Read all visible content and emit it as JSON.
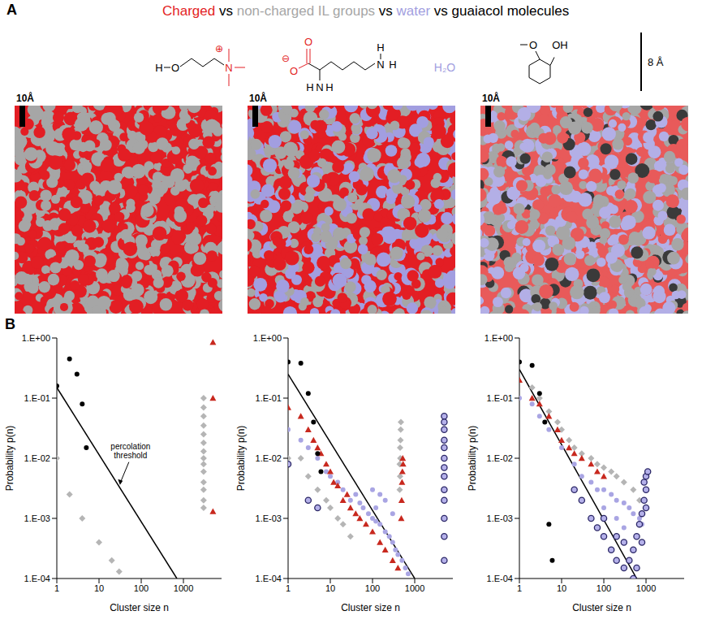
{
  "panel_a": {
    "letter": "A",
    "title_parts": [
      {
        "text": "Charged",
        "color": "#e31e24"
      },
      {
        "text": " vs ",
        "color": "#000000"
      },
      {
        "text": "non-charged IL groups",
        "color": "#a6a6a6"
      },
      {
        "text": " vs ",
        "color": "#000000"
      },
      {
        "text": "water",
        "color": "#a29ee0"
      },
      {
        "text": " vs guaiacol molecules",
        "color": "#000000"
      }
    ],
    "cation_atoms": [
      "H",
      "O",
      "N",
      "⊕"
    ],
    "anion_atoms": [
      "O",
      "⊖",
      "O",
      "H",
      "N",
      "H",
      "N",
      "H",
      "H"
    ],
    "water": "H₂O",
    "guaiacol_atoms": [
      "O",
      "OH"
    ],
    "size_scale": "8 Å",
    "snapshots": [
      {
        "scale": "10Å",
        "colors": [
          "#e31e24",
          "#a6a6a6"
        ]
      },
      {
        "scale": "10Å",
        "colors": [
          "#e31e24",
          "#a6a6a6",
          "#a29ee0"
        ]
      },
      {
        "scale": "10Å",
        "colors": [
          "#e85a5a",
          "#a6a6a6",
          "#b3afe6",
          "#3a3a3a"
        ]
      }
    ]
  },
  "panel_b": {
    "letter": "B"
  },
  "chart_data": [
    {
      "type": "scatter",
      "log": true,
      "xlim": [
        1,
        8000
      ],
      "ylim": [
        0.0001,
        1
      ],
      "xticks": [
        1,
        10,
        100,
        1000
      ],
      "yticks": [
        {
          "value": 1,
          "label": "1.E+00"
        },
        {
          "value": 0.1,
          "label": "1.E-01"
        },
        {
          "value": 0.01,
          "label": "1.E-02"
        },
        {
          "value": 0.001,
          "label": "1.E-03"
        },
        {
          "value": 0.0001,
          "label": "1.E-04"
        }
      ],
      "x_label": "Cluster size n",
      "y_label": "Probability p(n)",
      "annotation": {
        "text": "percolation threshold",
        "x": 30,
        "y": 0.0034
      },
      "series": [
        {
          "type": "line",
          "line_style": "solid",
          "color": "#000000",
          "x": [
            1,
            700
          ],
          "y": [
            0.15,
            0.0001
          ]
        },
        {
          "marker": "diamond",
          "color": "#b5b5b5",
          "x": [
            1,
            2,
            4,
            10,
            20,
            30,
            3000,
            3000,
            3000,
            3000,
            3000,
            3000,
            3000,
            3000,
            3000,
            3000,
            3000,
            3000,
            3000,
            3000
          ],
          "y": [
            0.01,
            0.0025,
            0.001,
            0.0004,
            0.0002,
            0.00013,
            0.1,
            0.07,
            0.05,
            0.035,
            0.025,
            0.018,
            0.013,
            0.01,
            0.008,
            0.006,
            0.004,
            0.003,
            0.002,
            0.0015
          ]
        },
        {
          "marker": "triangle",
          "color": "#c8281e",
          "x": [
            5000,
            5000,
            5000
          ],
          "y": [
            0.85,
            0.1,
            0.0013
          ]
        },
        {
          "marker": "circle",
          "color": "#000000",
          "x": [
            1,
            2,
            3,
            4,
            5
          ],
          "y": [
            0.16,
            0.45,
            0.25,
            0.08,
            0.015
          ]
        }
      ]
    },
    {
      "type": "scatter",
      "log": true,
      "xlim": [
        1,
        8000
      ],
      "ylim": [
        0.0001,
        1
      ],
      "xticks": [
        1,
        10,
        100,
        1000
      ],
      "yticks": [
        {
          "value": 1,
          "label": "1.E+00"
        },
        {
          "value": 0.1,
          "label": "1.E-01"
        },
        {
          "value": 0.01,
          "label": "1.E-02"
        },
        {
          "value": 0.001,
          "label": "1.E-03"
        },
        {
          "value": 0.0001,
          "label": "1.E-04"
        }
      ],
      "x_label": "Cluster size n",
      "y_label": "Probability p(n)",
      "series": [
        {
          "type": "line",
          "line_style": "solid",
          "color": "#000000",
          "x": [
            1,
            1000
          ],
          "y": [
            0.25,
            0.0001
          ]
        },
        {
          "marker": "circle",
          "color": "#a9a5e3",
          "x": [
            1,
            2,
            3,
            5,
            8,
            10,
            15,
            20,
            30,
            40,
            50,
            60,
            80,
            100,
            100,
            120,
            120,
            150,
            150,
            200,
            200,
            250,
            300,
            300,
            350,
            400,
            500,
            600,
            700
          ],
          "y": [
            0.03,
            0.02,
            0.015,
            0.01,
            0.006,
            0.005,
            0.004,
            0.003,
            0.002,
            0.0025,
            0.0018,
            0.0015,
            0.0012,
            0.001,
            0.003,
            0.0009,
            0.0015,
            0.0008,
            0.0025,
            0.0006,
            0.002,
            0.0005,
            0.0004,
            0.0012,
            0.0003,
            0.00025,
            0.0002,
            0.00015,
            0.00012
          ]
        },
        {
          "marker": "diamond",
          "color": "#b5b5b5",
          "x": [
            1,
            2,
            3,
            5,
            8,
            10,
            15,
            20,
            30,
            440,
            440,
            450,
            450,
            455,
            460,
            465,
            470
          ],
          "y": [
            0.01,
            0.01,
            0.005,
            0.003,
            0.002,
            0.0015,
            0.001,
            0.0008,
            0.0005,
            0.003,
            0.008,
            0.005,
            0.015,
            0.01,
            0.02,
            0.03,
            0.04
          ]
        },
        {
          "marker": "triangle",
          "color": "#c8281e",
          "x": [
            1,
            2,
            3,
            4,
            5,
            6,
            8,
            10,
            12,
            15,
            20,
            25,
            30,
            40,
            50,
            70,
            100,
            150,
            200,
            300,
            400,
            480,
            490,
            500,
            510,
            520,
            530
          ],
          "y": [
            0.07,
            0.05,
            0.03,
            0.02,
            0.015,
            0.012,
            0.008,
            0.006,
            0.004,
            0.0035,
            0.002,
            0.0025,
            0.0015,
            0.0012,
            0.001,
            0.0008,
            0.0006,
            0.0004,
            0.0003,
            0.0002,
            0.00015,
            0.001,
            0.002,
            0.004,
            0.006,
            0.01,
            0.008
          ]
        },
        {
          "marker": "ring",
          "color": "#2b2766",
          "x": [
            1,
            3,
            5,
            5000,
            5000,
            5000,
            5000,
            5000,
            5000,
            5000,
            5000,
            5000,
            5000,
            5000,
            5000,
            5000
          ],
          "y": [
            0.008,
            0.002,
            0.0015,
            0.05,
            0.04,
            0.03,
            0.02,
            0.015,
            0.01,
            0.007,
            0.005,
            0.003,
            0.002,
            0.001,
            0.0005,
            0.0002
          ]
        },
        {
          "marker": "circle",
          "color": "#000000",
          "x": [
            1,
            2,
            3,
            4,
            5,
            6
          ],
          "y": [
            0.4,
            0.38,
            0.12,
            0.04,
            0.012,
            0.006
          ]
        }
      ]
    },
    {
      "type": "scatter",
      "log": true,
      "xlim": [
        1,
        8000
      ],
      "ylim": [
        0.0001,
        1
      ],
      "xticks": [
        1,
        10,
        100,
        1000
      ],
      "yticks": [
        {
          "value": 1,
          "label": "1.E+00"
        },
        {
          "value": 0.1,
          "label": "1.E-01"
        },
        {
          "value": 0.01,
          "label": "1.E-02"
        },
        {
          "value": 0.001,
          "label": "1.E-03"
        },
        {
          "value": 0.0001,
          "label": "1.E-04"
        }
      ],
      "x_label": "Cluster size n",
      "y_label": "Probability p(n)",
      "series": [
        {
          "type": "line",
          "line_style": "solid",
          "color": "#000000",
          "x": [
            1,
            600
          ],
          "y": [
            0.3,
            0.0001
          ]
        },
        {
          "marker": "diamond",
          "color": "#b5b5b5",
          "x": [
            2,
            3,
            5,
            8,
            10,
            15,
            20,
            30,
            50,
            70,
            100,
            150,
            200,
            300,
            500,
            700
          ],
          "y": [
            0.15,
            0.1,
            0.06,
            0.04,
            0.03,
            0.02,
            0.015,
            0.012,
            0.01,
            0.008,
            0.007,
            0.006,
            0.005,
            0.004,
            0.003,
            0.002
          ]
        },
        {
          "marker": "triangle",
          "color": "#c8281e",
          "x": [
            1,
            2,
            3,
            5,
            8,
            10,
            15,
            20,
            30,
            50,
            70,
            100
          ],
          "y": [
            0.2,
            0.1,
            0.08,
            0.05,
            0.03,
            0.02,
            0.015,
            0.012,
            0.01,
            0.008,
            0.006,
            0.005
          ]
        },
        {
          "marker": "circle",
          "color": "#a9a5e3",
          "x": [
            1,
            2,
            3,
            5,
            10,
            20,
            30,
            50,
            70,
            100,
            100,
            150,
            200,
            200,
            300,
            300,
            400,
            500,
            700,
            800
          ],
          "y": [
            0.1,
            0.08,
            0.05,
            0.03,
            0.015,
            0.008,
            0.005,
            0.004,
            0.003,
            0.003,
            0.0015,
            0.0025,
            0.002,
            0.001,
            0.0018,
            0.0007,
            0.0015,
            0.0012,
            0.001,
            0.0008
          ]
        },
        {
          "marker": "ring",
          "color": "#2b2766",
          "x": [
            20,
            30,
            50,
            70,
            100,
            100,
            150,
            200,
            200,
            300,
            300,
            400,
            500,
            500,
            600,
            600,
            700,
            800,
            800,
            900,
            900,
            1000,
            1000,
            1000,
            1100
          ],
          "y": [
            0.003,
            0.002,
            0.001,
            0.0007,
            0.0005,
            0.001,
            0.0003,
            0.0002,
            0.0005,
            0.00015,
            0.0004,
            0.0002,
            0.0003,
            0.0001,
            0.0005,
            0.00015,
            0.0008,
            0.0012,
            0.0004,
            0.002,
            0.004,
            0.003,
            0.005,
            0.0015,
            0.006
          ]
        },
        {
          "marker": "circle",
          "color": "#000000",
          "x": [
            1,
            2,
            3,
            4,
            5,
            6
          ],
          "y": [
            0.4,
            0.35,
            0.12,
            0.04,
            0.0008,
            0.0002
          ]
        }
      ]
    }
  ]
}
